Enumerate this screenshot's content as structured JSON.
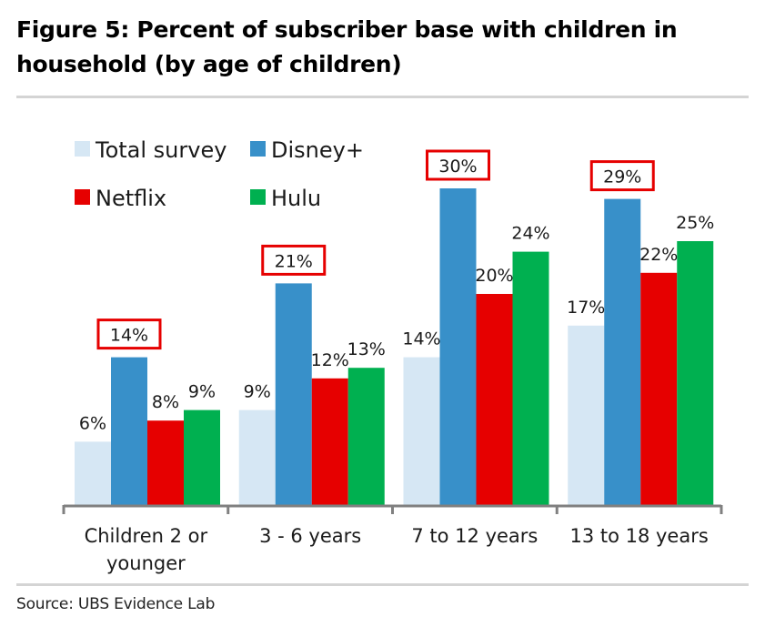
{
  "title_line1": "Figure 5: Percent of subscriber base with children in",
  "title_line2": "household (by age of children)",
  "source": "Source:  UBS Evidence Lab",
  "chart_data": {
    "type": "bar",
    "title": "Figure 5: Percent of subscriber base with children in household (by age of children)",
    "xlabel": "",
    "ylabel": "",
    "ylim": [
      0,
      30
    ],
    "grid": false,
    "legend_position": "top-left",
    "categories": [
      [
        "Children 2 or",
        "younger"
      ],
      [
        "3 - 6 years"
      ],
      [
        "7 to 12 years"
      ],
      [
        "13 to 18 years"
      ]
    ],
    "series": [
      {
        "name": "Total survey",
        "color": "#d6e7f4",
        "values": [
          6,
          9,
          14,
          17
        ],
        "labels": [
          "6%",
          "9%",
          "14%",
          "17%"
        ]
      },
      {
        "name": "Disney+",
        "color": "#3890c9",
        "values": [
          14,
          21,
          30,
          29
        ],
        "labels": [
          "14%",
          "21%",
          "30%",
          "29%"
        ],
        "highlighted": true
      },
      {
        "name": "Netflix",
        "color": "#e60000",
        "values": [
          8,
          12,
          20,
          22
        ],
        "labels": [
          "8%",
          "12%",
          "20%",
          "22%"
        ]
      },
      {
        "name": "Hulu",
        "color": "#00b050",
        "values": [
          9,
          13,
          24,
          25
        ],
        "labels": [
          "9%",
          "13%",
          "24%",
          "25%"
        ]
      }
    ],
    "highlight_color": "#e60000",
    "axis_color": "#808080"
  }
}
